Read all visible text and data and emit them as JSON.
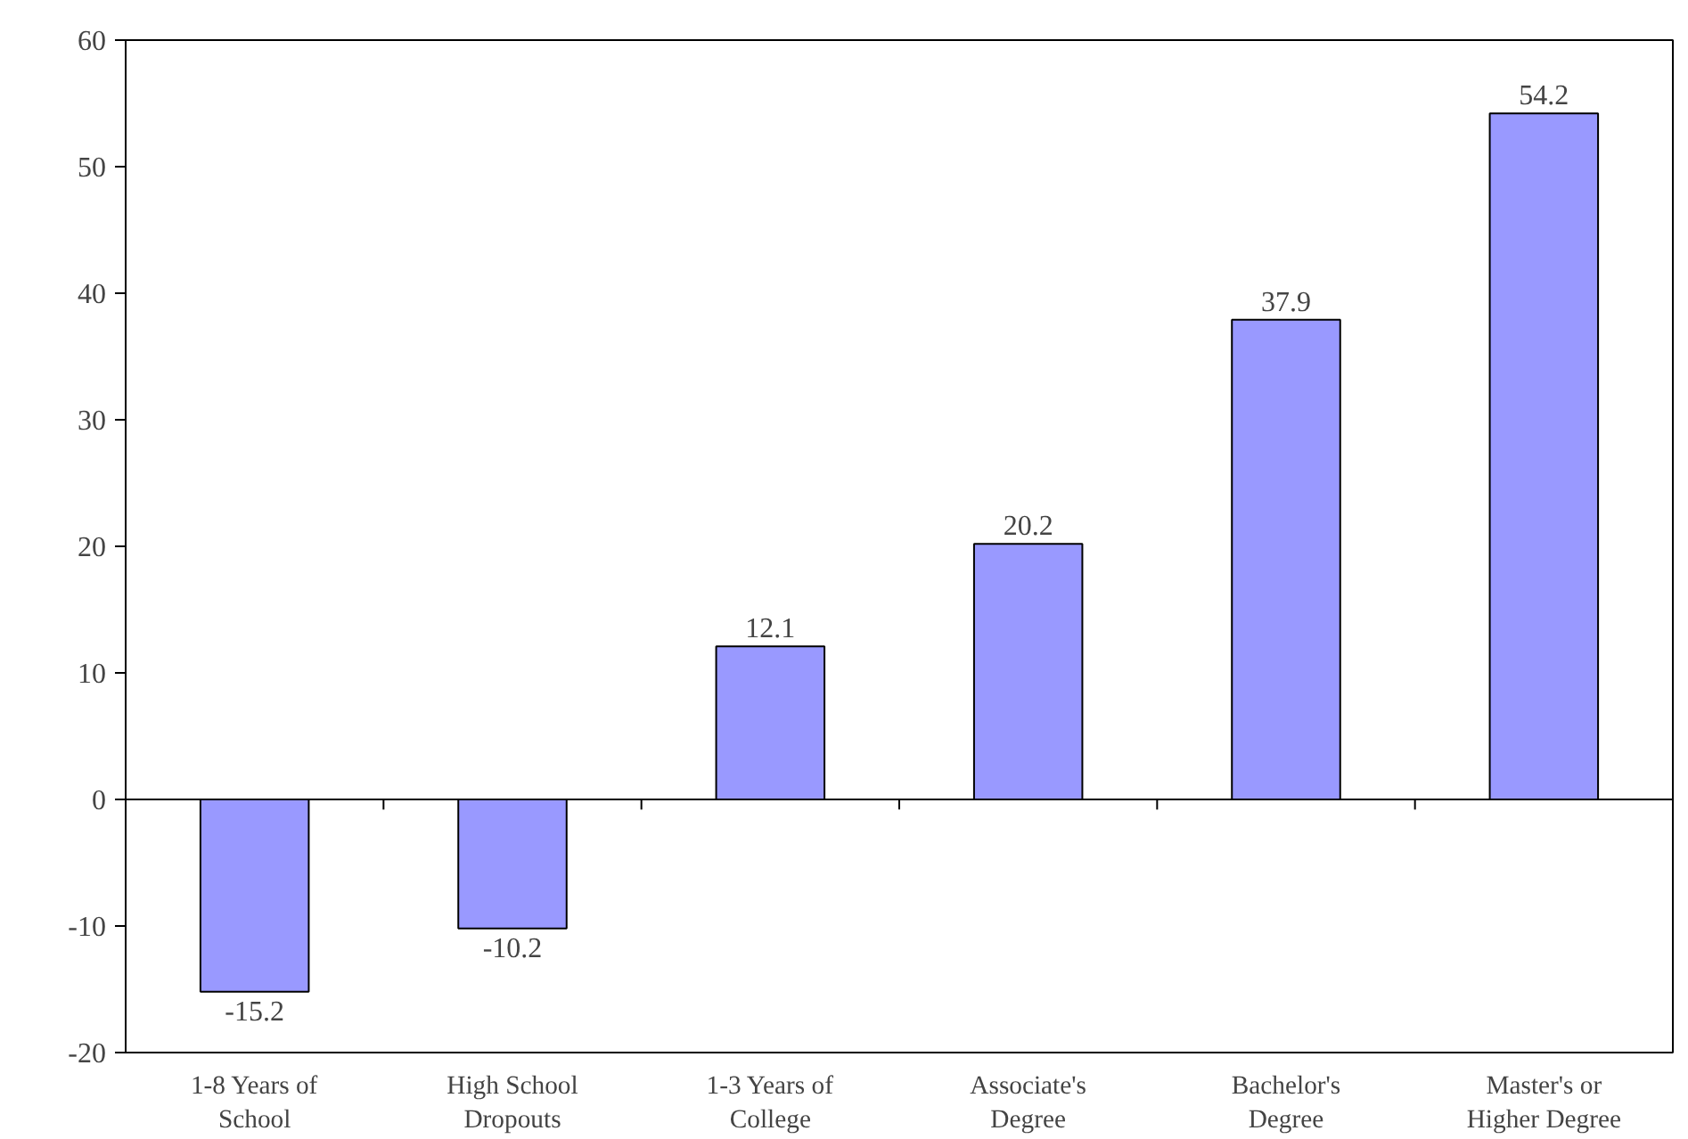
{
  "chart_data": {
    "type": "bar",
    "categories": [
      "1-8 Years of\nSchool",
      "High School\nDropouts",
      "1-3 Years of\nCollege",
      "Associate's\nDegree",
      "Bachelor's\nDegree",
      "Master's or\nHigher Degree"
    ],
    "values": [
      -15.2,
      -10.2,
      12.1,
      20.2,
      37.9,
      54.2
    ],
    "color": "#9999ff",
    "ylim": [
      -20,
      60
    ],
    "yticks": [
      -20,
      -10,
      0,
      10,
      20,
      30,
      40,
      50,
      60
    ],
    "data_labels": true
  }
}
